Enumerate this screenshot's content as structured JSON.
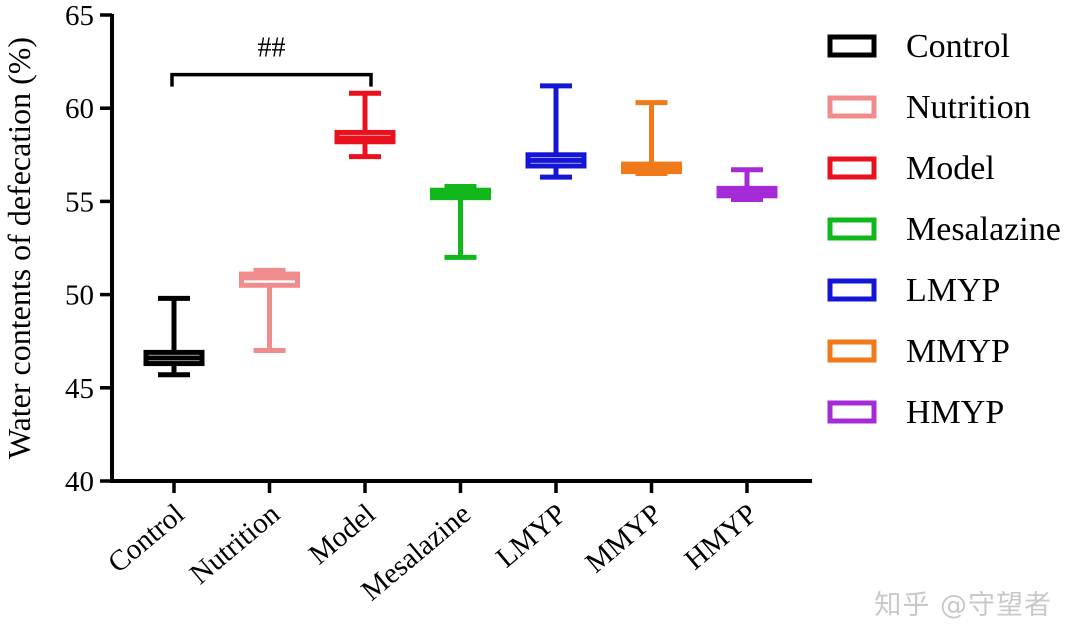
{
  "chart_data": {
    "type": "box",
    "ylabel": "Water contents of defecation (%)",
    "ylim": [
      40,
      65
    ],
    "yticks": [
      40,
      45,
      50,
      55,
      60,
      65
    ],
    "categories": [
      "Control",
      "Nutrition",
      "Model",
      "Mesalazine",
      "LMYP",
      "MMYP",
      "HMYP"
    ],
    "series": [
      {
        "name": "Control",
        "color": "#000000",
        "min": 45.7,
        "q1": 46.3,
        "median": 46.6,
        "q3": 46.9,
        "max": 49.8
      },
      {
        "name": "Nutrition",
        "color": "#f08c8c",
        "min": 47.0,
        "q1": 50.5,
        "median": 50.9,
        "q3": 51.1,
        "max": 51.3
      },
      {
        "name": "Model",
        "color": "#e8111d",
        "min": 57.4,
        "q1": 58.2,
        "median": 58.4,
        "q3": 58.7,
        "max": 60.8
      },
      {
        "name": "Mesalazine",
        "color": "#10b81c",
        "min": 52.0,
        "q1": 55.2,
        "median": 55.4,
        "q3": 55.6,
        "max": 55.8
      },
      {
        "name": "LMYP",
        "color": "#1515d6",
        "min": 56.3,
        "q1": 56.9,
        "median": 57.2,
        "q3": 57.5,
        "max": 61.2
      },
      {
        "name": "MMYP",
        "color": "#f07a1a",
        "min": 56.5,
        "q1": 56.6,
        "median": 56.8,
        "q3": 57.0,
        "max": 60.3
      },
      {
        "name": "HMYP",
        "color": "#a52bd6",
        "min": 55.1,
        "q1": 55.3,
        "median": 55.5,
        "q3": 55.7,
        "max": 56.7
      }
    ],
    "significance": {
      "from": "Control",
      "to": "Model",
      "label": "##",
      "y": 61.8
    },
    "legend_position": "right"
  },
  "watermark": "知乎 @守望者"
}
